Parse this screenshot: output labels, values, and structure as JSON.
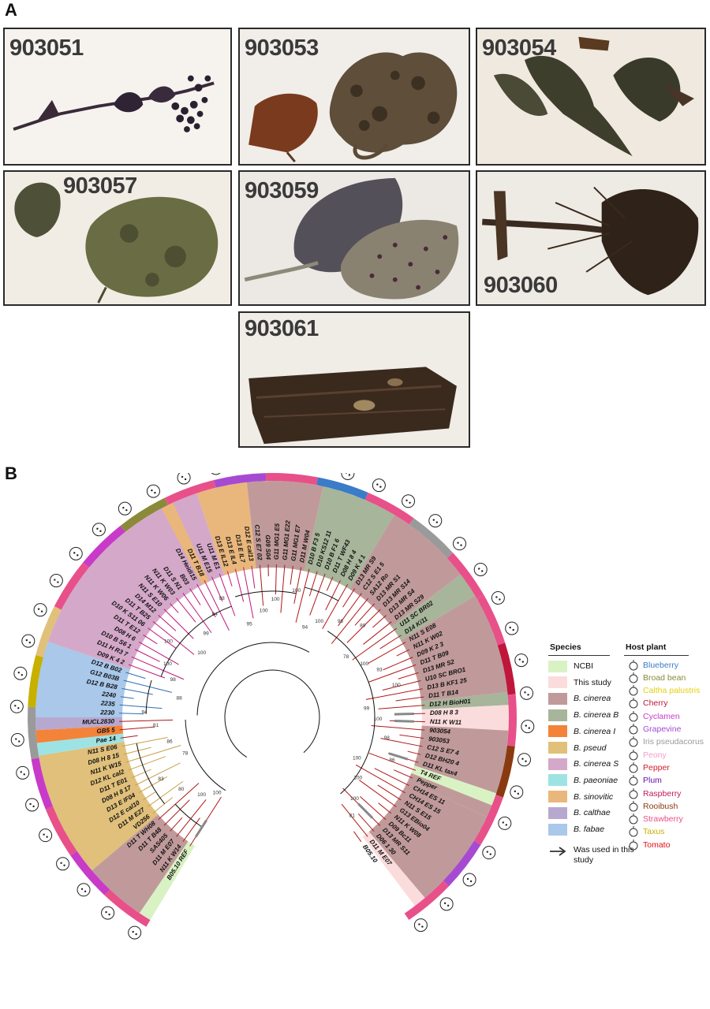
{
  "panel_a": {
    "letter": "A",
    "photos": [
      {
        "label": "903051"
      },
      {
        "label": "903053"
      },
      {
        "label": "903054"
      },
      {
        "label": "903057"
      },
      {
        "label": "903059"
      },
      {
        "label": "903060"
      },
      {
        "label": "903061"
      }
    ]
  },
  "panel_b": {
    "letter": "B",
    "legend": {
      "species_title": "Species",
      "host_title": "Host plant",
      "species": [
        {
          "name": "NCBI",
          "color": "#d9f2c4",
          "italic": false
        },
        {
          "name": "This study",
          "color": "#fbdcdc",
          "italic": false
        },
        {
          "name": "B. cinerea",
          "color": "#c09a9a",
          "italic": true
        },
        {
          "name": "B. cinerea B",
          "color": "#a7b59a",
          "italic": true
        },
        {
          "name": "B. cinerea I",
          "color": "#f4833a",
          "italic": true
        },
        {
          "name": "B. pseud",
          "color": "#e0c07a",
          "italic": true
        },
        {
          "name": "B. cinerea S",
          "color": "#d4a8c9",
          "italic": true
        },
        {
          "name": "B. paeoniae",
          "color": "#9ee3e4",
          "italic": true
        },
        {
          "name": "B. sinovitic",
          "color": "#e9b77c",
          "italic": true
        },
        {
          "name": "B. calthae",
          "color": "#b7a8cf",
          "italic": true
        },
        {
          "name": "B. fabae",
          "color": "#a9c8ea",
          "italic": true
        }
      ],
      "used_label": "Was used in this study",
      "hosts": [
        {
          "name": "Blueberry",
          "color": "#3a7cc7"
        },
        {
          "name": "Broad bean",
          "color": "#8a8a3a"
        },
        {
          "name": "Caltha palustris",
          "color": "#e4d00c"
        },
        {
          "name": "Cherry",
          "color": "#c0163c"
        },
        {
          "name": "Cyclamen",
          "color": "#c83ac8"
        },
        {
          "name": "Grapevine",
          "color": "#a64bd1"
        },
        {
          "name": "Iris pseudacorus",
          "color": "#9a9a9a"
        },
        {
          "name": "Peony",
          "color": "#f4a0c8"
        },
        {
          "name": "Pepper",
          "color": "#d0202a"
        },
        {
          "name": "Plum",
          "color": "#6a10b0"
        },
        {
          "name": "Raspberry",
          "color": "#c01a5a"
        },
        {
          "name": "Rooibush",
          "color": "#8a3a10"
        },
        {
          "name": "Strawberry",
          "color": "#e8508a"
        },
        {
          "name": "Taxus",
          "color": "#c8b000"
        },
        {
          "name": "Tomato",
          "color": "#e0101a"
        }
      ]
    },
    "tips": [
      "B05.10 REF",
      "N11 K W14",
      "D11 M E07",
      "SAS405",
      "D11 T B48",
      "D11 T WH08",
      "VD256",
      "D11 M E27",
      "D12 E cal10",
      "D13 E IF04",
      "D08 H 8 17",
      "D11 T E01",
      "D12 KL cal2",
      "N11 K W15",
      "D08 H 8 15",
      "N11 S E06",
      "Pae 14",
      "GB5 5",
      "MUCL2830",
      "2230",
      "2235",
      "2240",
      "D12 B B28",
      "G12 B03B",
      "D12 B B02",
      "D09 K 4 2",
      "D11 H R3 7",
      "D10 B S6 1",
      "D08 H 6",
      "D11 T E12",
      "D10 K S11 06",
      "D11 T B25",
      "D14 M12",
      "N11 S E10",
      "N11 K W06",
      "N11 K W03",
      "D11 S N1",
      "B03",
      "D14 Heidi15",
      "D11 T B18",
      "U11 M E15",
      "U11 M E1",
      "D13 E IL12",
      "D13 E IL4",
      "D13 E IL7",
      "D12 E cal13",
      "C12 S E7 02",
      "G09 S04",
      "G11 MG1 E5",
      "G11 MG1 E22",
      "G11 MG1 E7",
      "D11 M W04",
      "D10 B F3 5",
      "D10 KS12 11",
      "D10 B F1 6",
      "D11 T WF43",
      "D08 H 8 4",
      "D09 K 4 1",
      "D13 MR S9",
      "C12 S E1 5",
      "SA12 Ro",
      "D13 MR S1",
      "D13 MR S14",
      "D13 MR S4",
      "D13 MR S29",
      "U11 SC BR02",
      "D14 Ki11",
      "N11 S E08",
      "N11 K W02",
      "D09 K 2 3",
      "D11 T B09",
      "D13 MR S2",
      "U10 SC BRO1",
      "D13 B KF1 25",
      "D11 T B14",
      "D12 H BioH01",
      "D08 H 8 3",
      "N11 K W11",
      "903054",
      "903053",
      "C12 S E7 4",
      "D12 BH20 4",
      "D11 KL tax4",
      "T4 REF",
      "Pepper",
      "CH14 ES 11",
      "CH14 ES 15",
      "N11 S E15",
      "G13 EBio04",
      "N11 K W08",
      "D09 Bc11",
      "D13 MR S11",
      "D06 1 30",
      "D11 M E07",
      "B05.10"
    ],
    "bootstrap": [
      "100",
      "100",
      "80",
      "83",
      "78",
      "86",
      "81",
      "94",
      "88",
      "98",
      "100",
      "100",
      "100",
      "99",
      "84",
      "98",
      "95",
      "100",
      "100",
      "100",
      "94",
      "100",
      "96",
      "89",
      "78",
      "100",
      "93",
      "100",
      "99",
      "100",
      "98",
      "86",
      "100",
      "100",
      "100",
      "81"
    ]
  }
}
